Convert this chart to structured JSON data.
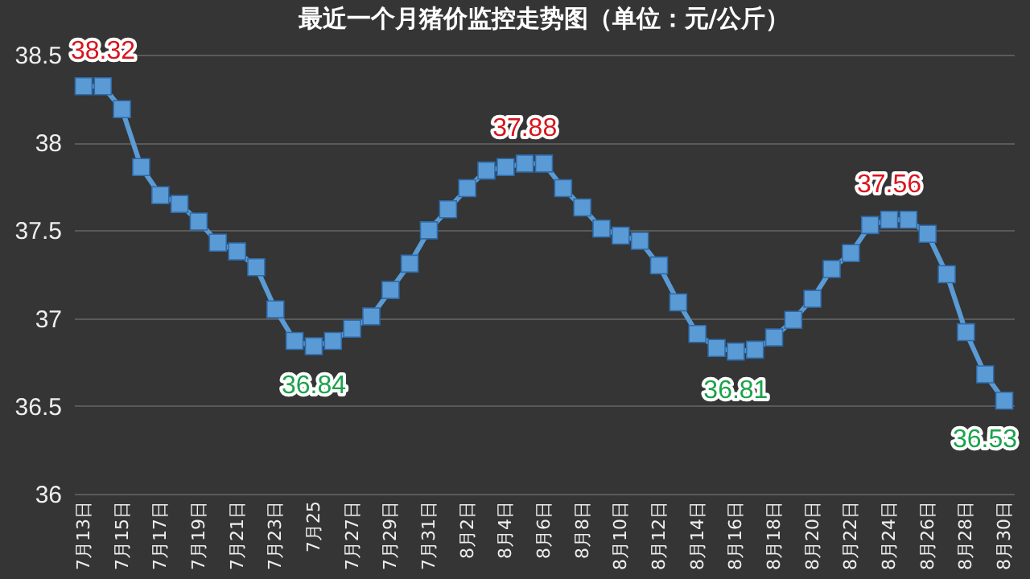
{
  "chart_data": {
    "type": "line",
    "title": "最近一个月猪价监控走势图（单位：元/公斤）",
    "categories": [
      "7月13日",
      null,
      "7月15日",
      null,
      "7月17日",
      null,
      "7月19日",
      null,
      "7月21日",
      null,
      "7月23日",
      null,
      "7月25",
      null,
      "7月27日",
      null,
      "7月29日",
      null,
      "7月31日",
      null,
      "8月2日",
      null,
      "8月4日",
      null,
      "8月6日",
      null,
      "8月8日",
      null,
      "8月10日",
      null,
      "8月12日",
      null,
      "8月14日",
      null,
      "8月16日",
      null,
      "8月18日",
      null,
      "8月20日",
      null,
      "8月22日",
      null,
      "8月24日",
      null,
      "8月26日",
      null,
      "8月28日",
      null,
      "8月30日"
    ],
    "series": [
      {
        "color": "#5b9bd5",
        "values": [
          38.32,
          38.32,
          38.19,
          37.86,
          37.7,
          37.65,
          37.55,
          37.43,
          37.38,
          37.29,
          37.05,
          36.87,
          36.84,
          36.87,
          36.94,
          37.01,
          37.16,
          37.31,
          37.5,
          37.62,
          37.74,
          37.84,
          37.86,
          37.88,
          37.88,
          37.74,
          37.63,
          37.51,
          37.47,
          37.44,
          37.3,
          37.09,
          36.91,
          36.83,
          36.81,
          36.82,
          36.89,
          36.99,
          37.11,
          37.28,
          37.37,
          37.53,
          37.56,
          37.56,
          37.48,
          37.25,
          36.92,
          36.68,
          36.53
        ],
        "value_labels": [
          "38.32",
          null,
          null,
          null,
          null,
          null,
          null,
          null,
          null,
          null,
          null,
          null,
          "36.84",
          null,
          null,
          null,
          null,
          null,
          null,
          null,
          null,
          null,
          null,
          "37.88",
          null,
          null,
          null,
          null,
          null,
          null,
          null,
          null,
          null,
          null,
          "36.81",
          null,
          null,
          null,
          null,
          null,
          null,
          null,
          "37.56",
          null,
          null,
          null,
          null,
          null,
          "36.53"
        ]
      }
    ],
    "ylim": [
      36,
      38.5
    ],
    "yticks": [
      36,
      36.5,
      37,
      37.5,
      38,
      38.5
    ],
    "grid": "y",
    "marker": "square",
    "line_style": "solid"
  }
}
